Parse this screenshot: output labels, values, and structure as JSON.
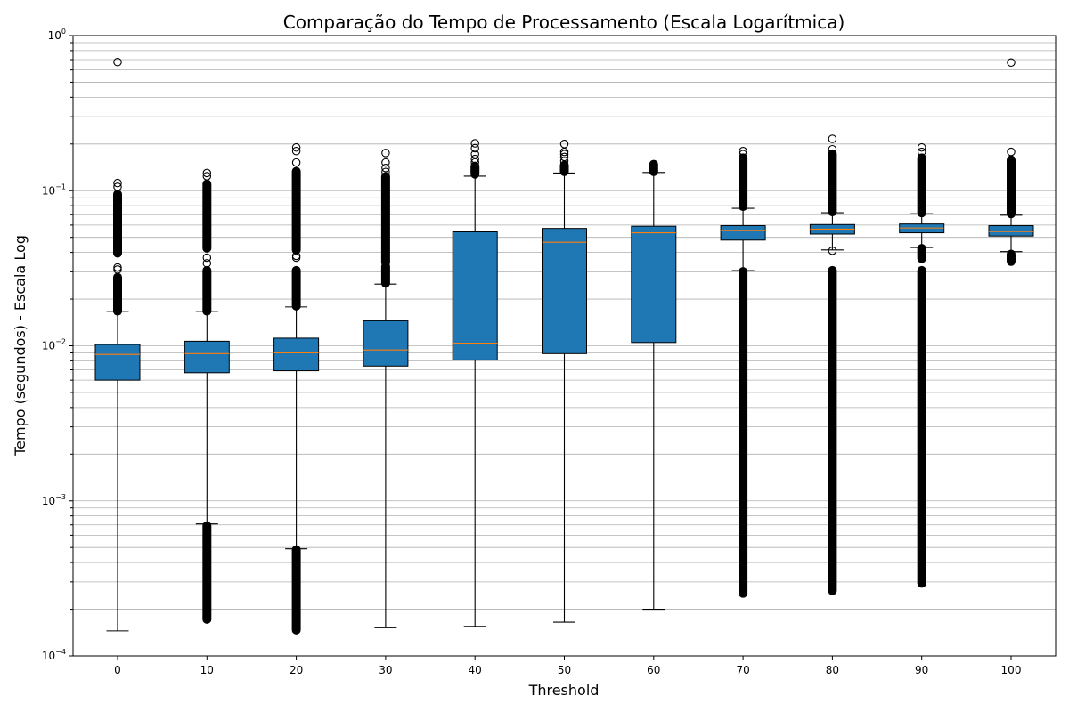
{
  "chart_data": {
    "type": "box",
    "title": "Comparação do Tempo de Processamento (Escala Logarítmica)",
    "xlabel": "Threshold",
    "ylabel": "Tempo (segundos) - Escala Log",
    "yscale": "log",
    "ylim": [
      0.0001,
      1.0
    ],
    "grid": "y-major-and-minor",
    "y_ticks": [
      {
        "value": 0.0001,
        "base": "10",
        "exp": "−4"
      },
      {
        "value": 0.001,
        "base": "10",
        "exp": "−3"
      },
      {
        "value": 0.01,
        "base": "10",
        "exp": "−2"
      },
      {
        "value": 0.1,
        "base": "10",
        "exp": "−1"
      },
      {
        "value": 1.0,
        "base": "10",
        "exp": "0"
      }
    ],
    "colors": {
      "box": "#1f77b4",
      "median": "#ff7f0e",
      "flier": "#000000"
    },
    "categories": [
      "0",
      "10",
      "20",
      "30",
      "40",
      "50",
      "60",
      "70",
      "80",
      "90",
      "100"
    ],
    "boxes": [
      {
        "threshold": "0",
        "whislo": 0.000145,
        "q1": 0.006,
        "med": 0.0088,
        "q3": 0.0102,
        "whishi": 0.0166,
        "fliers_high": [
          [
            0.0165,
            0.028
          ],
          [
            0.039,
            0.096
          ],
          0.112,
          0.106,
          0.032,
          0.031,
          0.675
        ],
        "fliers_low": []
      },
      {
        "threshold": "10",
        "whislo": 0.00071,
        "q1": 0.0067,
        "med": 0.0089,
        "q3": 0.0107,
        "whishi": 0.0166,
        "fliers_high": [
          [
            0.0165,
            0.031
          ],
          [
            0.042,
            0.112
          ],
          0.034,
          0.037,
          0.124,
          0.13
        ],
        "fliers_low": [
          [
            0.00017,
            0.0007
          ]
        ]
      },
      {
        "threshold": "20",
        "whislo": 0.00049,
        "q1": 0.0069,
        "med": 0.009,
        "q3": 0.0112,
        "whishi": 0.0178,
        "fliers_high": [
          [
            0.0178,
            0.031
          ],
          [
            0.041,
            0.135
          ],
          0.037,
          0.038,
          0.152,
          0.18,
          0.19
        ],
        "fliers_low": [
          [
            0.000145,
            0.00049
          ]
        ]
      },
      {
        "threshold": "30",
        "whislo": 0.000152,
        "q1": 0.0074,
        "med": 0.0094,
        "q3": 0.0145,
        "whishi": 0.025,
        "fliers_high": [
          [
            0.025,
            0.033
          ],
          [
            0.034,
            0.125
          ],
          0.132,
          0.14,
          0.152,
          0.175
        ],
        "fliers_low": []
      },
      {
        "threshold": "40",
        "whislo": 0.000155,
        "q1": 0.0081,
        "med": 0.0104,
        "q3": 0.0543,
        "whishi": 0.124,
        "fliers_high": [
          [
            0.126,
            0.146
          ],
          0.152,
          0.16,
          0.172,
          0.188,
          0.202
        ],
        "fliers_low": []
      },
      {
        "threshold": "50",
        "whislo": 0.000165,
        "q1": 0.0089,
        "med": 0.0465,
        "q3": 0.0571,
        "whishi": 0.13,
        "fliers_high": [
          [
            0.131,
            0.148
          ],
          0.155,
          0.165,
          0.172,
          0.178,
          0.2
        ],
        "fliers_low": []
      },
      {
        "threshold": "60",
        "whislo": 0.0002,
        "q1": 0.0105,
        "med": 0.0535,
        "q3": 0.059,
        "whishi": 0.131,
        "fliers_high": [
          [
            0.131,
            0.15
          ]
        ],
        "fliers_low": []
      },
      {
        "threshold": "70",
        "whislo": 0.0305,
        "q1": 0.048,
        "med": 0.0555,
        "q3": 0.0595,
        "whishi": 0.077,
        "fliers_high": [
          [
            0.078,
            0.165
          ],
          0.172,
          0.18
        ],
        "fliers_low": [
          [
            0.00025,
            0.0305
          ]
        ]
      },
      {
        "threshold": "80",
        "whislo": 0.0415,
        "q1": 0.0525,
        "med": 0.0565,
        "q3": 0.0605,
        "whishi": 0.072,
        "fliers_high": [
          [
            0.072,
            0.175
          ],
          0.185,
          0.216
        ],
        "fliers_low": [
          [
            0.00026,
            0.031
          ],
          0.041
        ]
      },
      {
        "threshold": "90",
        "whislo": 0.043,
        "q1": 0.0535,
        "med": 0.0575,
        "q3": 0.061,
        "whishi": 0.071,
        "fliers_high": [
          [
            0.071,
            0.165
          ],
          0.178,
          0.19
        ],
        "fliers_low": [
          [
            0.00029,
            0.031
          ],
          [
            0.036,
            0.043
          ]
        ]
      },
      {
        "threshold": "100",
        "whislo": 0.0405,
        "q1": 0.051,
        "med": 0.0545,
        "q3": 0.0595,
        "whishi": 0.0695,
        "fliers_high": [
          [
            0.07,
            0.16
          ],
          0.178,
          0.67
        ],
        "fliers_low": [
          [
            0.0345,
            0.0395
          ]
        ]
      }
    ]
  }
}
